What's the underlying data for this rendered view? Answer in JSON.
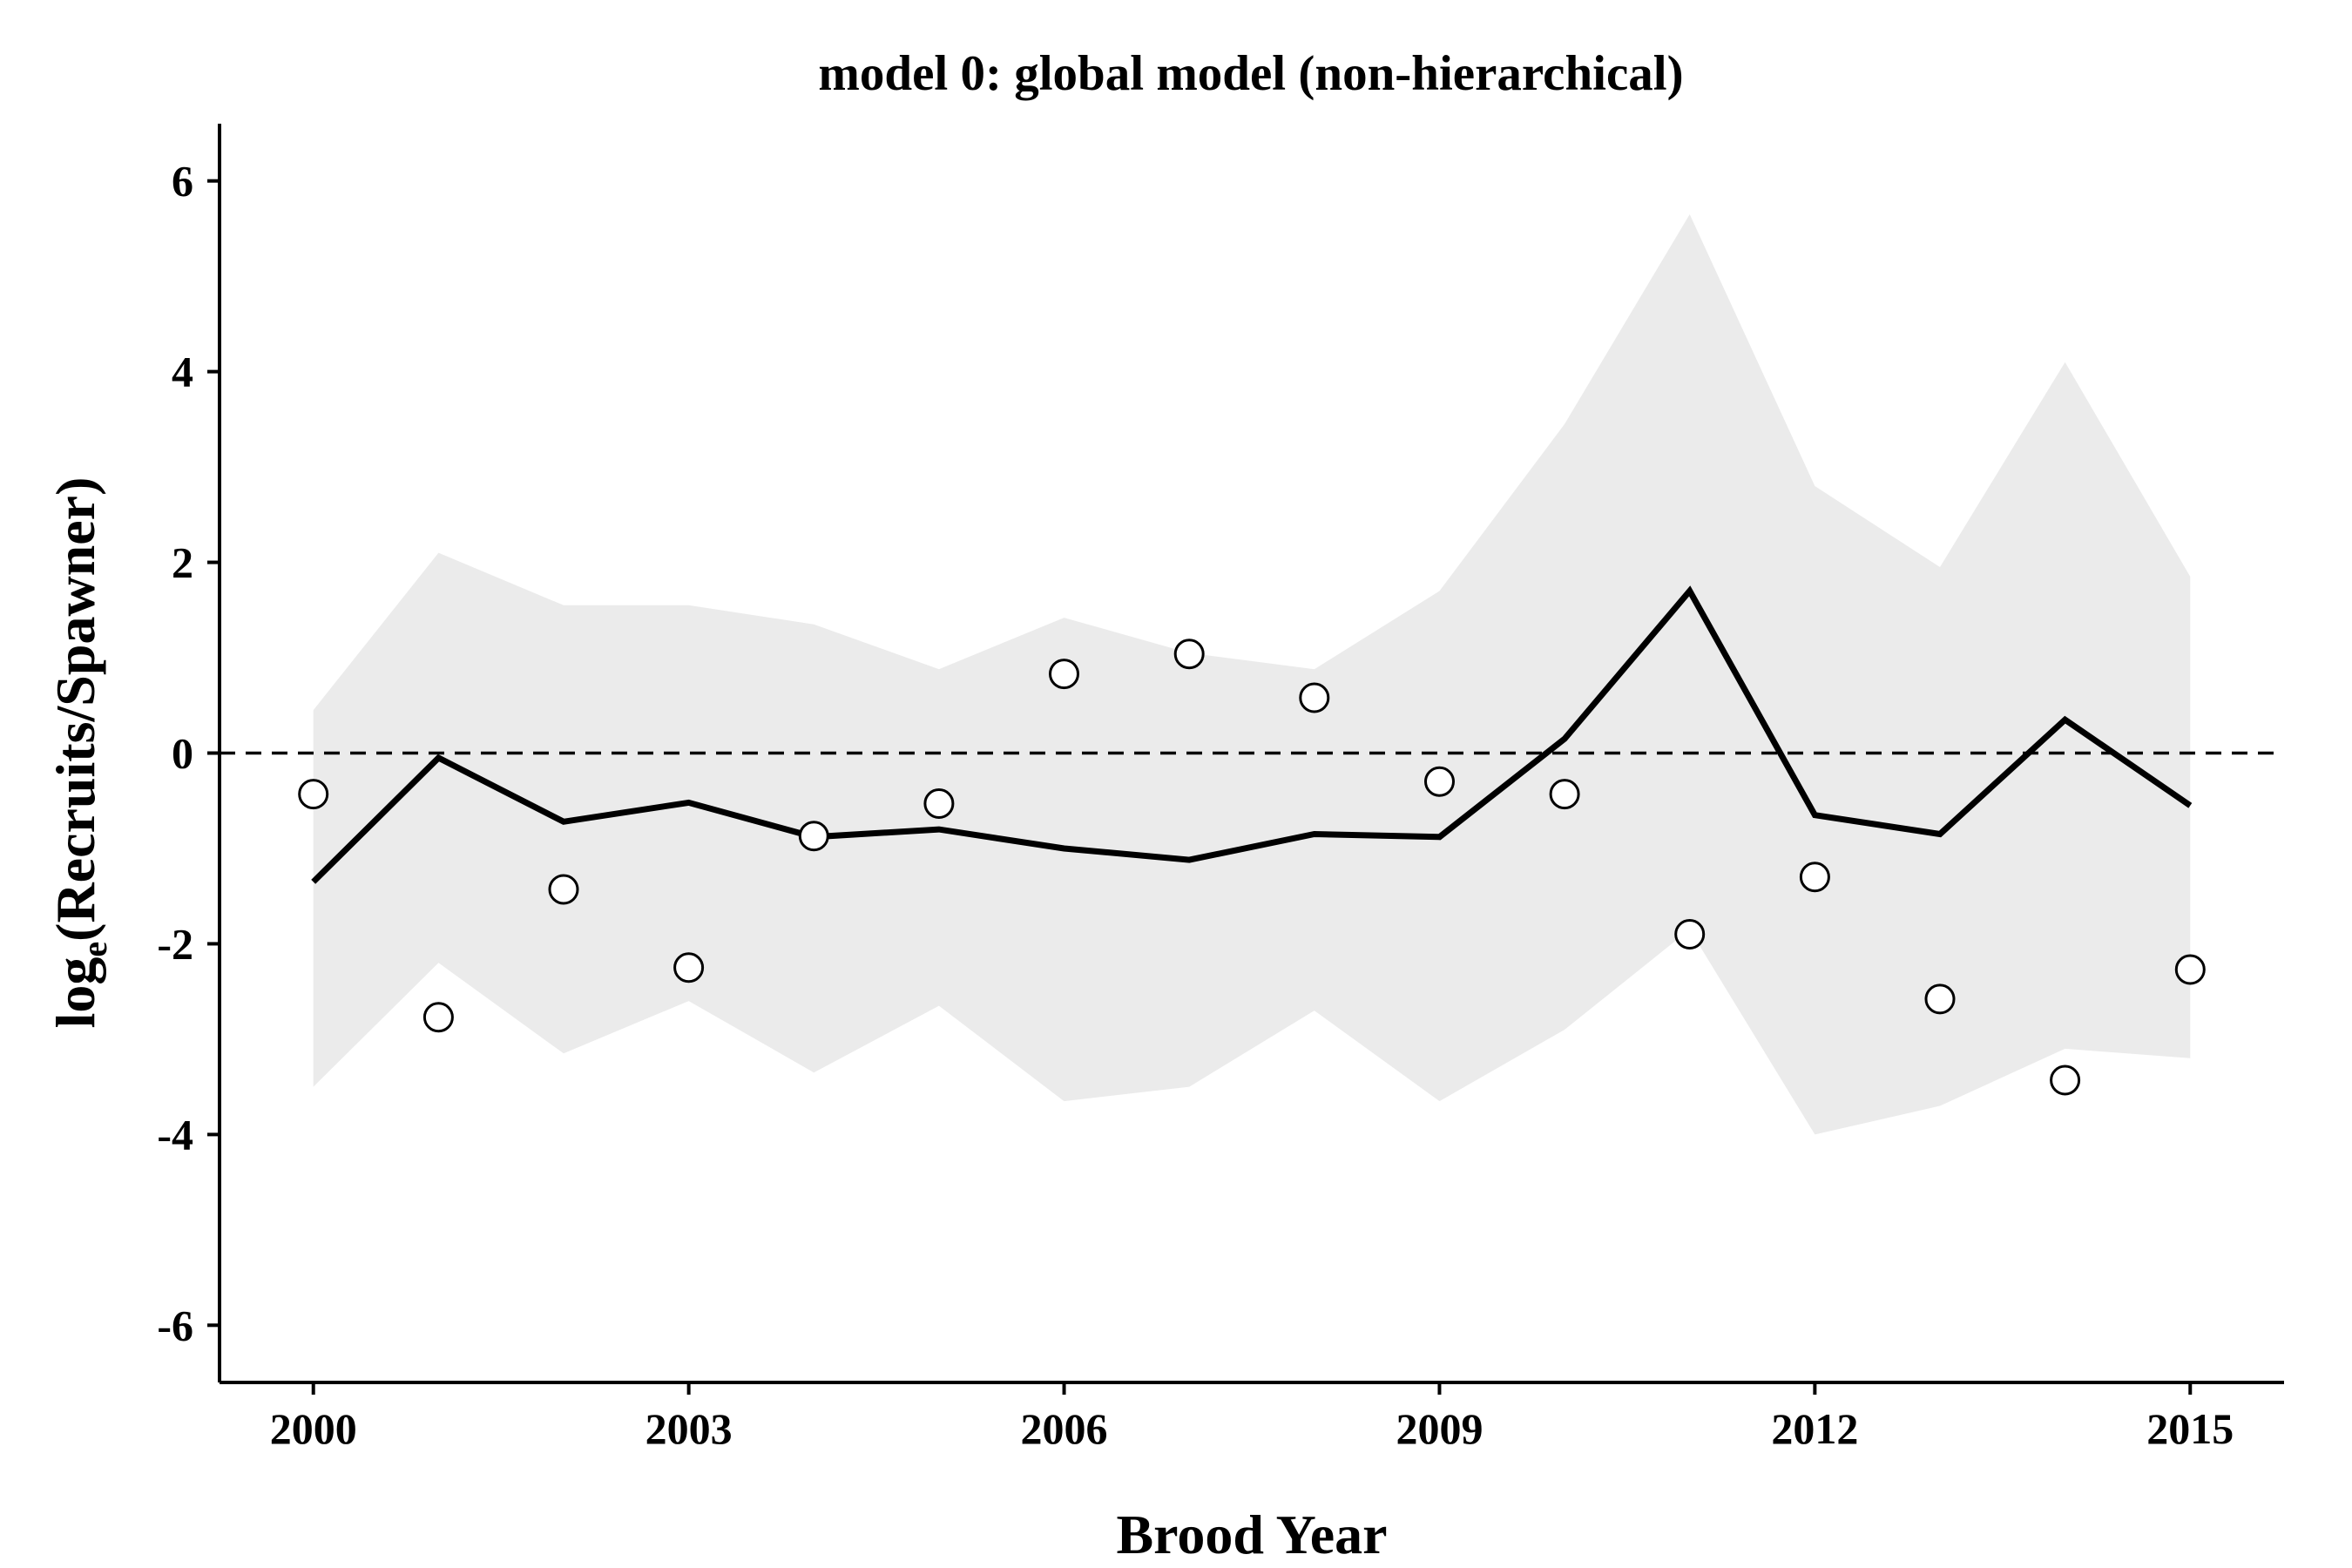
{
  "chart_data": {
    "type": "line",
    "title": "model 0: global model (non-hierarchical)",
    "xlabel": "Brood Year",
    "ylabel_main": "log",
    "ylabel_sub": "e",
    "ylabel_rest": "(Recruits/Spawner)",
    "x": [
      2000,
      2001,
      2002,
      2003,
      2004,
      2005,
      2006,
      2007,
      2008,
      2009,
      2010,
      2011,
      2012,
      2013,
      2014,
      2015
    ],
    "xlim": [
      1999.25,
      2015.75
    ],
    "ylim": [
      -6.6,
      6.6
    ],
    "xticks": [
      2000,
      2003,
      2006,
      2009,
      2012,
      2015
    ],
    "yticks": [
      -6,
      -4,
      -2,
      0,
      2,
      4,
      6
    ],
    "reference_line": {
      "y": 0,
      "style": "dashed"
    },
    "series": [
      {
        "kind": "band",
        "lower": [
          -3.5,
          -2.2,
          -3.15,
          -2.6,
          -3.35,
          -2.65,
          -3.65,
          -3.5,
          -2.7,
          -3.65,
          -2.9,
          -1.85,
          -4.0,
          -3.7,
          -3.1,
          -3.2
        ],
        "upper": [
          0.45,
          2.1,
          1.55,
          1.55,
          1.35,
          0.88,
          1.42,
          1.05,
          0.88,
          1.7,
          3.45,
          5.65,
          2.8,
          1.95,
          4.1,
          1.85
        ],
        "color": "#ebebeb"
      },
      {
        "kind": "line",
        "values": [
          -1.35,
          -0.05,
          -0.72,
          -0.52,
          -0.88,
          -0.8,
          -1.0,
          -1.12,
          -0.85,
          -0.88,
          0.15,
          1.7,
          -0.65,
          -0.85,
          0.35,
          -0.55
        ],
        "color": "#000000"
      },
      {
        "kind": "points",
        "values": [
          -0.43,
          -2.77,
          -1.43,
          -2.25,
          -0.87,
          -0.53,
          0.83,
          1.04,
          0.58,
          -0.3,
          -0.43,
          -1.9,
          -1.3,
          -2.58,
          -3.43,
          -2.27
        ],
        "color": "#000000"
      }
    ]
  }
}
